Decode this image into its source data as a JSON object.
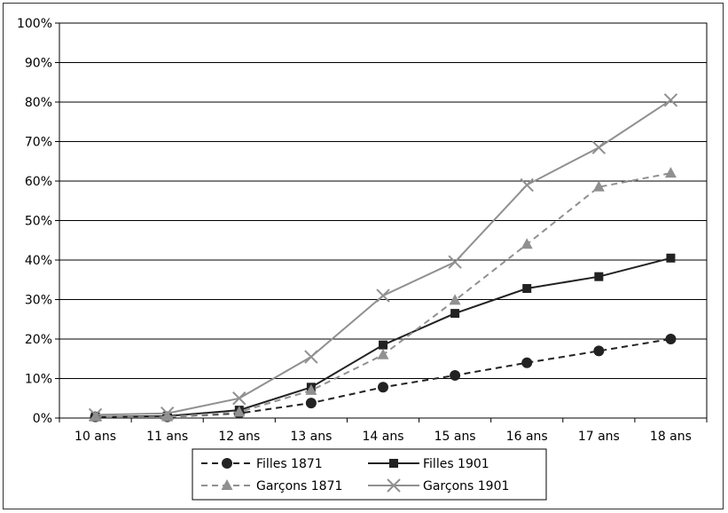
{
  "chart_data": {
    "type": "line",
    "categories": [
      "10 ans",
      "11 ans",
      "12 ans",
      "13 ans",
      "14 ans",
      "15 ans",
      "16 ans",
      "17 ans",
      "18 ans"
    ],
    "ylim": [
      0,
      100
    ],
    "yticks": [
      0,
      10,
      20,
      30,
      40,
      50,
      60,
      70,
      80,
      90,
      100
    ],
    "ytick_labels": [
      "0%",
      "10%",
      "20%",
      "30%",
      "40%",
      "50%",
      "60%",
      "70%",
      "80%",
      "90%",
      "100%"
    ],
    "grid": true,
    "legend_position": "bottom",
    "series": [
      {
        "name": "Filles 1871",
        "values": [
          0.3,
          0.3,
          1.2,
          3.8,
          7.8,
          10.8,
          14.0,
          17.0,
          20.0
        ],
        "color": "#222222",
        "dash": "dashed",
        "marker": "circle"
      },
      {
        "name": "Filles 1901",
        "values": [
          0.3,
          0.5,
          2.0,
          7.8,
          18.5,
          26.5,
          32.8,
          35.8,
          40.5
        ],
        "color": "#222222",
        "dash": "solid",
        "marker": "square"
      },
      {
        "name": "Garçons 1871",
        "values": [
          0.3,
          0.3,
          1.5,
          7.0,
          16.0,
          29.8,
          44.0,
          58.5,
          62.0
        ],
        "color": "#909090",
        "dash": "dashed",
        "marker": "triangle"
      },
      {
        "name": "Garçons 1901",
        "values": [
          0.8,
          1.2,
          5.0,
          15.5,
          31.0,
          39.5,
          59.0,
          68.5,
          80.5
        ],
        "color": "#909090",
        "dash": "solid",
        "marker": "x"
      }
    ]
  }
}
